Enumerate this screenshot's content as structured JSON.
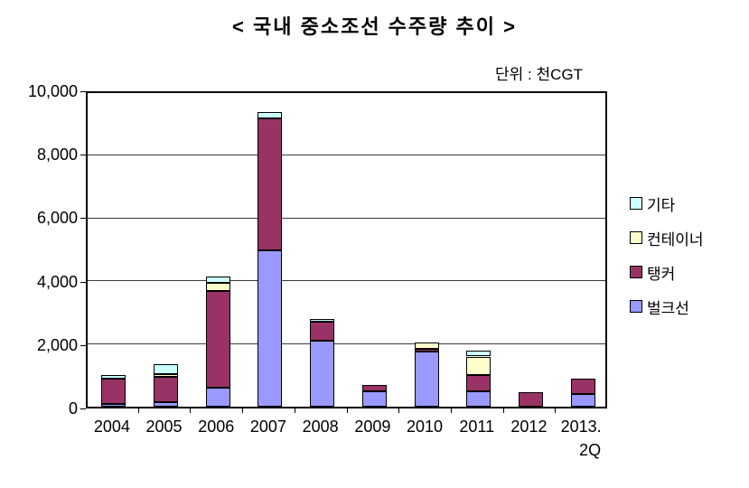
{
  "title": "< 국내 중소조선 수주량 추이 >",
  "unit_label": "단위 : 천CGT",
  "chart_data": {
    "type": "bar",
    "stacked": true,
    "title": "< 국내 중소조선 수주량 추이 >",
    "unit": "천CGT",
    "categories": [
      "2004",
      "2005",
      "2006",
      "2007",
      "2008",
      "2009",
      "2010",
      "2011",
      "2012",
      "2013.2Q"
    ],
    "x_tick_lines": [
      [
        "2004"
      ],
      [
        "2005"
      ],
      [
        "2006"
      ],
      [
        "2007"
      ],
      [
        "2008"
      ],
      [
        "2009"
      ],
      [
        "2010"
      ],
      [
        "2011"
      ],
      [
        "2012"
      ],
      [
        "2013.",
        "2Q"
      ]
    ],
    "series": [
      {
        "name": "벌크선",
        "key": "bulk",
        "color": "#9999FF",
        "values": [
          100,
          150,
          600,
          5000,
          2100,
          500,
          1750,
          500,
          0,
          400
        ]
      },
      {
        "name": "탱커",
        "key": "tanker",
        "color": "#993366",
        "values": [
          800,
          800,
          3100,
          4200,
          600,
          200,
          100,
          500,
          450,
          500
        ]
      },
      {
        "name": "컨테이너",
        "key": "container",
        "color": "#FFFFCC",
        "values": [
          0,
          100,
          250,
          0,
          0,
          0,
          200,
          600,
          0,
          0
        ]
      },
      {
        "name": "기타",
        "key": "other",
        "color": "#CCFFFF",
        "values": [
          100,
          300,
          200,
          200,
          100,
          0,
          0,
          200,
          0,
          0
        ]
      }
    ],
    "legend_order_top_to_bottom": [
      "기타",
      "컨테이너",
      "탱커",
      "벌크선"
    ],
    "legend_position": "right",
    "grid": true,
    "ylim": [
      0,
      10000
    ],
    "yticks": [
      {
        "value": 0,
        "label": "0"
      },
      {
        "value": 2000,
        "label": "2,000"
      },
      {
        "value": 4000,
        "label": "4,000"
      },
      {
        "value": 6000,
        "label": "6,000"
      },
      {
        "value": 8000,
        "label": "8,000"
      },
      {
        "value": 10000,
        "label": "10,000"
      }
    ]
  },
  "colors": {
    "background": "#FFFFFF",
    "text": "#000000",
    "axis": "#000000",
    "gridline": "#3A3A3A",
    "bar_border": "#000000"
  }
}
